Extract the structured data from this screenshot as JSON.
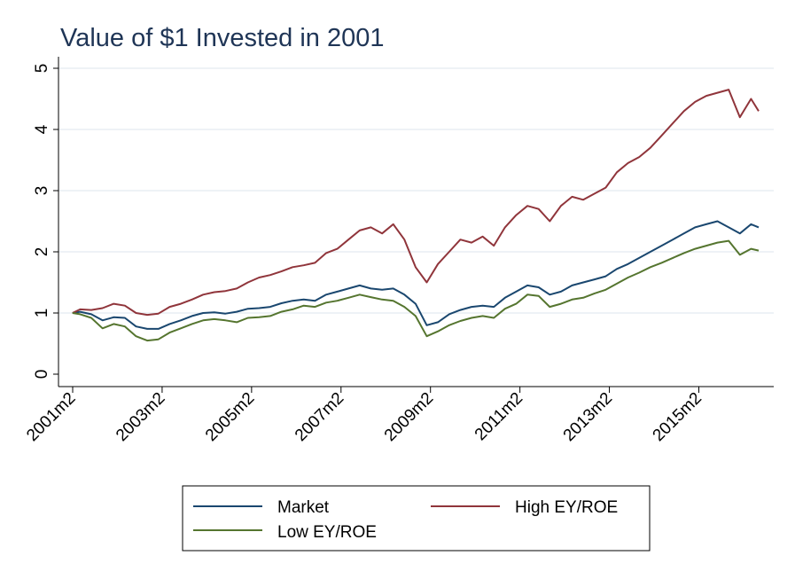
{
  "chart_data": {
    "type": "line",
    "title": "Value of $1 Invested in 2001",
    "xlabel": "",
    "ylabel": "",
    "xlim": [
      2001.083,
      2016.5
    ],
    "ylim": [
      0,
      5
    ],
    "x_ticks": [
      {
        "value": 2001.083,
        "label": "2001m2"
      },
      {
        "value": 2003.083,
        "label": "2003m2"
      },
      {
        "value": 2005.083,
        "label": "2005m2"
      },
      {
        "value": 2007.083,
        "label": "2007m2"
      },
      {
        "value": 2009.083,
        "label": "2009m2"
      },
      {
        "value": 2011.083,
        "label": "2011m2"
      },
      {
        "value": 2013.083,
        "label": "2013m2"
      },
      {
        "value": 2015.083,
        "label": "2015m2"
      }
    ],
    "y_ticks": [
      {
        "value": 0,
        "label": "0"
      },
      {
        "value": 1,
        "label": "1"
      },
      {
        "value": 2,
        "label": "2"
      },
      {
        "value": 3,
        "label": "3"
      },
      {
        "value": 4,
        "label": "4"
      },
      {
        "value": 5,
        "label": "5"
      }
    ],
    "grid": "horizontal",
    "legend_position": "bottom",
    "x": [
      2001.08,
      2001.25,
      2001.5,
      2001.75,
      2002.0,
      2002.25,
      2002.5,
      2002.75,
      2003.0,
      2003.25,
      2003.5,
      2003.75,
      2004.0,
      2004.25,
      2004.5,
      2004.75,
      2005.0,
      2005.25,
      2005.5,
      2005.75,
      2006.0,
      2006.25,
      2006.5,
      2006.75,
      2007.0,
      2007.25,
      2007.5,
      2007.75,
      2008.0,
      2008.25,
      2008.5,
      2008.75,
      2009.0,
      2009.25,
      2009.5,
      2009.75,
      2010.0,
      2010.25,
      2010.5,
      2010.75,
      2011.0,
      2011.25,
      2011.5,
      2011.75,
      2012.0,
      2012.25,
      2012.5,
      2012.75,
      2013.0,
      2013.25,
      2013.5,
      2013.75,
      2014.0,
      2014.25,
      2014.5,
      2014.75,
      2015.0,
      2015.25,
      2015.5,
      2015.75,
      2016.0,
      2016.25,
      2016.42
    ],
    "series": [
      {
        "name": "Market",
        "color": "#1a476f",
        "values": [
          1.0,
          1.02,
          0.98,
          0.88,
          0.93,
          0.92,
          0.78,
          0.74,
          0.74,
          0.82,
          0.88,
          0.95,
          1.0,
          1.01,
          0.99,
          1.02,
          1.07,
          1.08,
          1.1,
          1.16,
          1.2,
          1.22,
          1.2,
          1.3,
          1.35,
          1.4,
          1.45,
          1.4,
          1.38,
          1.4,
          1.3,
          1.15,
          0.8,
          0.85,
          0.98,
          1.05,
          1.1,
          1.12,
          1.1,
          1.25,
          1.35,
          1.45,
          1.42,
          1.3,
          1.35,
          1.45,
          1.5,
          1.55,
          1.6,
          1.72,
          1.8,
          1.9,
          2.0,
          2.1,
          2.2,
          2.3,
          2.4,
          2.45,
          2.5,
          2.4,
          2.3,
          2.45,
          2.4
        ]
      },
      {
        "name": "High EY/ROE",
        "color": "#90353b",
        "values": [
          1.0,
          1.06,
          1.05,
          1.08,
          1.15,
          1.12,
          1.0,
          0.97,
          0.99,
          1.1,
          1.15,
          1.22,
          1.3,
          1.34,
          1.36,
          1.4,
          1.5,
          1.58,
          1.62,
          1.68,
          1.75,
          1.78,
          1.82,
          1.98,
          2.05,
          2.2,
          2.35,
          2.4,
          2.3,
          2.45,
          2.2,
          1.75,
          1.5,
          1.8,
          2.0,
          2.2,
          2.15,
          2.25,
          2.1,
          2.4,
          2.6,
          2.75,
          2.7,
          2.5,
          2.75,
          2.9,
          2.85,
          2.95,
          3.05,
          3.3,
          3.45,
          3.55,
          3.7,
          3.9,
          4.1,
          4.3,
          4.45,
          4.55,
          4.6,
          4.65,
          4.2,
          4.5,
          4.3
        ]
      },
      {
        "name": "Low EY/ROE",
        "color": "#55752f",
        "values": [
          1.0,
          0.98,
          0.92,
          0.75,
          0.82,
          0.78,
          0.62,
          0.55,
          0.57,
          0.68,
          0.75,
          0.82,
          0.88,
          0.9,
          0.88,
          0.85,
          0.92,
          0.93,
          0.95,
          1.02,
          1.06,
          1.12,
          1.1,
          1.17,
          1.2,
          1.25,
          1.3,
          1.26,
          1.22,
          1.2,
          1.1,
          0.95,
          0.62,
          0.7,
          0.8,
          0.87,
          0.92,
          0.95,
          0.92,
          1.07,
          1.15,
          1.3,
          1.28,
          1.1,
          1.15,
          1.22,
          1.25,
          1.32,
          1.38,
          1.48,
          1.58,
          1.66,
          1.75,
          1.82,
          1.9,
          1.98,
          2.05,
          2.1,
          2.15,
          2.18,
          1.95,
          2.05,
          2.02
        ]
      }
    ]
  }
}
